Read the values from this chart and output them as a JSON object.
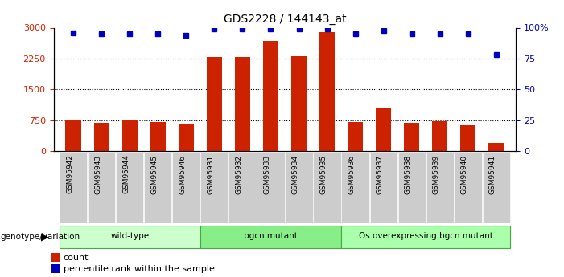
{
  "title": "GDS2228 / 144143_at",
  "samples": [
    "GSM95942",
    "GSM95943",
    "GSM95944",
    "GSM95945",
    "GSM95946",
    "GSM95931",
    "GSM95932",
    "GSM95933",
    "GSM95934",
    "GSM95935",
    "GSM95936",
    "GSM95937",
    "GSM95938",
    "GSM95939",
    "GSM95940",
    "GSM95941"
  ],
  "counts": [
    750,
    685,
    755,
    700,
    650,
    2290,
    2290,
    2680,
    2310,
    2890,
    700,
    1060,
    680,
    730,
    630,
    200
  ],
  "percentile_pct": [
    96,
    95,
    95,
    95,
    94,
    99.3,
    99.3,
    99.3,
    99.3,
    99.3,
    95,
    98,
    95,
    95,
    95,
    78
  ],
  "groups": [
    {
      "label": "wild-type",
      "start": 0,
      "end": 5,
      "color": "#ccffcc"
    },
    {
      "label": "bgcn mutant",
      "start": 5,
      "end": 10,
      "color": "#88ee88"
    },
    {
      "label": "Os overexpressing bgcn mutant",
      "start": 10,
      "end": 16,
      "color": "#aaffaa"
    }
  ],
  "bar_color": "#cc2200",
  "dot_color": "#0000bb",
  "ylim_left": [
    0,
    3000
  ],
  "ylim_right": [
    0,
    100
  ],
  "yticks_left": [
    0,
    750,
    1500,
    2250,
    3000
  ],
  "yticks_right": [
    0,
    25,
    50,
    75,
    100
  ],
  "right_tick_labels": [
    "0",
    "25",
    "50",
    "75",
    "100%"
  ],
  "bg_color": "#ffffff",
  "bar_width": 0.55,
  "title_fontsize": 10,
  "tick_bg_color": "#cccccc",
  "grid_lines": [
    750,
    1500,
    2250
  ]
}
